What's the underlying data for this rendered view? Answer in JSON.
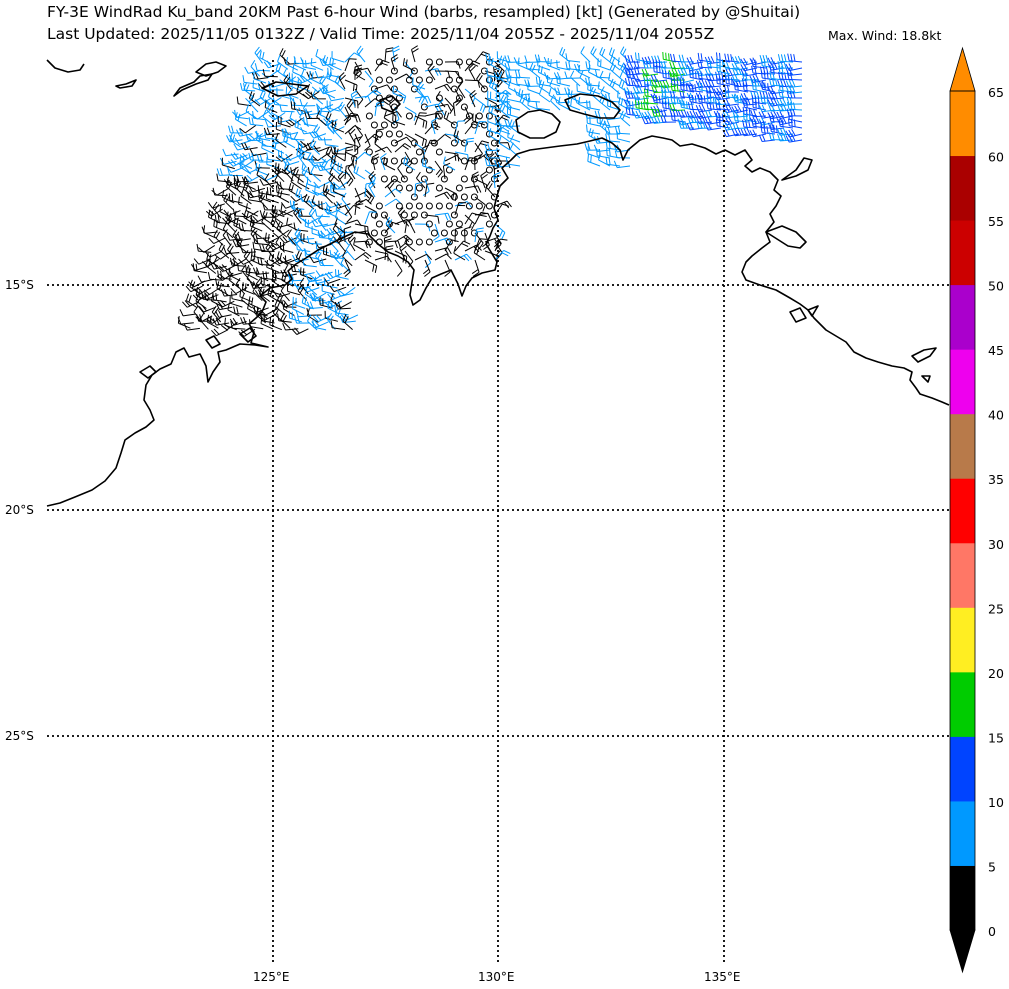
{
  "header": {
    "title_line1": "FY-3E WindRad Ku_band 20KM Past 6-hour Wind (barbs, resampled) [kt] (Generated by @Shuitai)",
    "title_line2": "Last Updated: 2025/11/05 0132Z / Valid Time: 2025/11/04 2055Z - 2025/11/04 2055Z",
    "max_wind": "Max. Wind: 18.8kt"
  },
  "map": {
    "lon_labels": [
      "125°E",
      "130°E",
      "135°E"
    ],
    "lat_labels": [
      "15°S",
      "20°S",
      "25°S"
    ],
    "lon_values": [
      125,
      130,
      135
    ],
    "lat_values": [
      -15,
      -20,
      -25
    ],
    "gridlines": "dotted"
  },
  "colorbar": {
    "ticks": [
      "0",
      "5",
      "10",
      "15",
      "20",
      "25",
      "30",
      "35",
      "40",
      "45",
      "50",
      "55",
      "60",
      "65"
    ],
    "colors": [
      "#000000",
      "#0099ff",
      "#0044ff",
      "#00cc00",
      "#ffee22",
      "#ff7766",
      "#ff0000",
      "#b87a4a",
      "#ee00ee",
      "#aa00cc",
      "#cc0000",
      "#aa0000",
      "#ff8c00"
    ],
    "extend": "both"
  },
  "wind_colors": {
    "calm_0_5": "#000000",
    "light_5_10": "#0099ff",
    "moderate_10_15": "#0044ff",
    "fresh_15_20": "#00cc00"
  }
}
